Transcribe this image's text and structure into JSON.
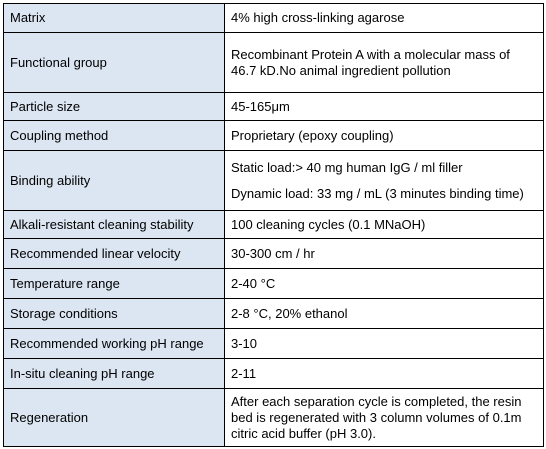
{
  "table": {
    "rows": [
      {
        "label": "Matrix",
        "value": [
          "4% high cross-linking agarose"
        ]
      },
      {
        "label": "Functional group",
        "value": [
          "Recombinant Protein A with a molecular mass of",
          "46.7 kD.No animal ingredient pollution"
        ]
      },
      {
        "label": "Particle size",
        "value": [
          "45-165μm"
        ]
      },
      {
        "label": "Coupling method",
        "value": [
          "Proprietary (epoxy coupling)"
        ]
      },
      {
        "label": "Binding ability",
        "value": [
          "Static load:> 40 mg human IgG / ml filler",
          "Dynamic load: 33 mg / mL (3 minutes binding time)"
        ]
      },
      {
        "label": "Alkali-resistant cleaning stability",
        "value": [
          "100 cleaning cycles (0.1 MNaOH)"
        ]
      },
      {
        "label": "Recommended linear velocity",
        "value": [
          "30-300 cm / hr"
        ]
      },
      {
        "label": "Temperature range",
        "value": [
          "2-40 °C"
        ]
      },
      {
        "label": "Storage conditions",
        "value": [
          "2-8 °C, 20% ethanol"
        ]
      },
      {
        "label": "Recommended working pH range",
        "value": [
          "3-10"
        ]
      },
      {
        "label": "In-situ cleaning pH range",
        "value": [
          "2-11"
        ]
      },
      {
        "label": "Regeneration",
        "value": [
          "After each separation cycle is completed, the resin",
          "bed is regenerated with 3 column volumes of 0.1m",
          "citric acid buffer (pH 3.0)."
        ]
      }
    ]
  }
}
